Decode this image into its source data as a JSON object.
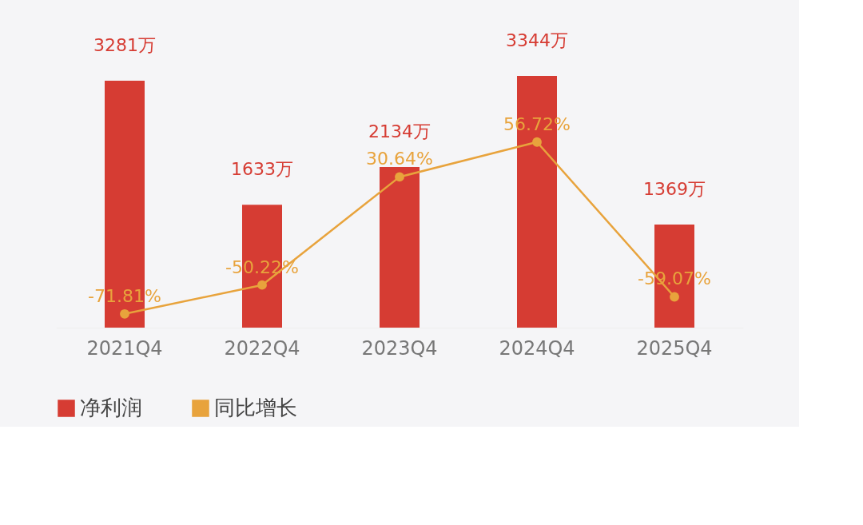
{
  "chart_data": {
    "type": "bar",
    "categories": [
      "2021Q4",
      "2022Q4",
      "2023Q4",
      "2024Q4",
      "2025Q4"
    ],
    "series": [
      {
        "name": "净利润",
        "color": "#d63c33",
        "values": [
          3281,
          1633,
          2134,
          3344,
          1369
        ],
        "value_labels": [
          "3281万",
          "1633万",
          "2134万",
          "3344万",
          "1369万"
        ]
      },
      {
        "name": "同比增长",
        "type": "line",
        "axis": "y2",
        "color": "#e8a33c",
        "marker": "circle",
        "values": [
          -71.81,
          -50.22,
          30.64,
          56.72,
          -59.07
        ],
        "value_labels": [
          "-71.81%",
          "-50.22%",
          "30.64%",
          "56.72%",
          "-59.07%"
        ]
      }
    ],
    "legend": "bottom",
    "grid": false
  }
}
